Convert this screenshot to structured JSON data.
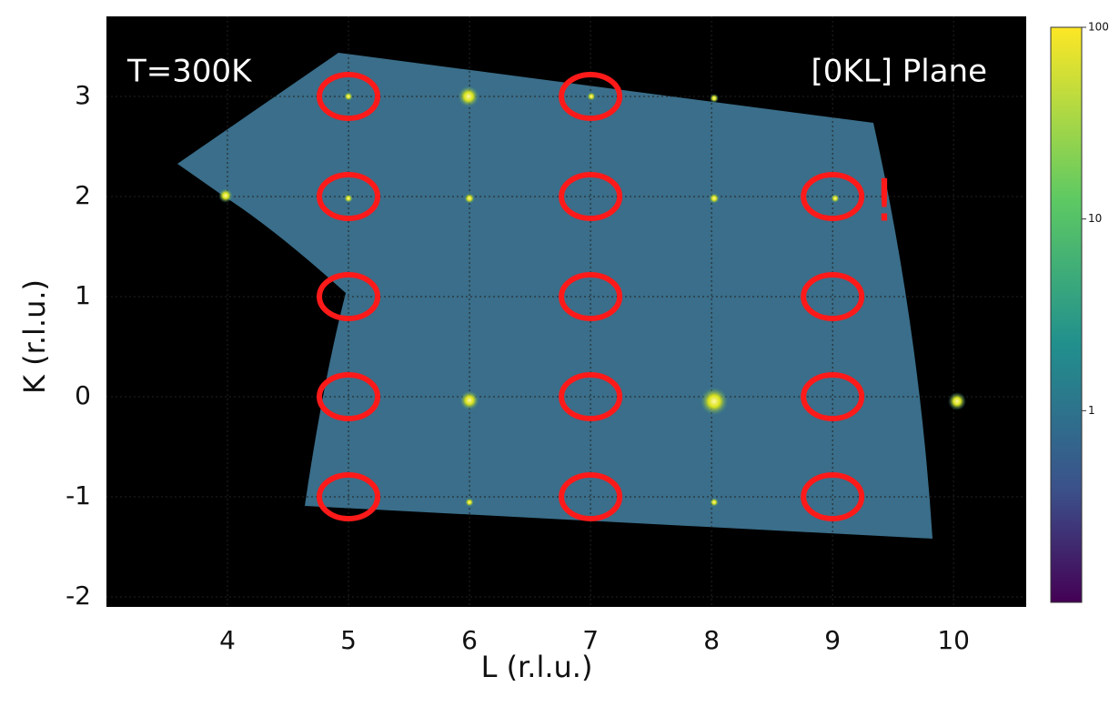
{
  "chart_data": {
    "type": "scatter",
    "x_label": "L (r.l.u.)",
    "y_label": "K (r.l.u.)",
    "annotations": [
      "T=300K",
      "[0KL] Plane",
      "!"
    ],
    "x": [
      5,
      5,
      5,
      5,
      5,
      7,
      7,
      7,
      7,
      7,
      9,
      9,
      9,
      9
    ],
    "y": [
      3,
      2,
      1,
      0,
      -1,
      3,
      2,
      1,
      0,
      -1,
      2,
      1,
      0,
      -1
    ],
    "color": "#ff1a1a",
    "xlim": [
      3,
      10.6
    ],
    "ylim": [
      -2.1,
      3.8
    ],
    "xticks": [
      4,
      5,
      6,
      7,
      8,
      9,
      10
    ],
    "yticks": [
      -2,
      -1,
      0,
      1,
      2,
      3
    ],
    "grid": true,
    "colorbar": {
      "scale": "log",
      "colormap": "viridis",
      "lim": [
        0.1,
        100
      ],
      "ticks": [
        1,
        10,
        100
      ]
    }
  }
}
